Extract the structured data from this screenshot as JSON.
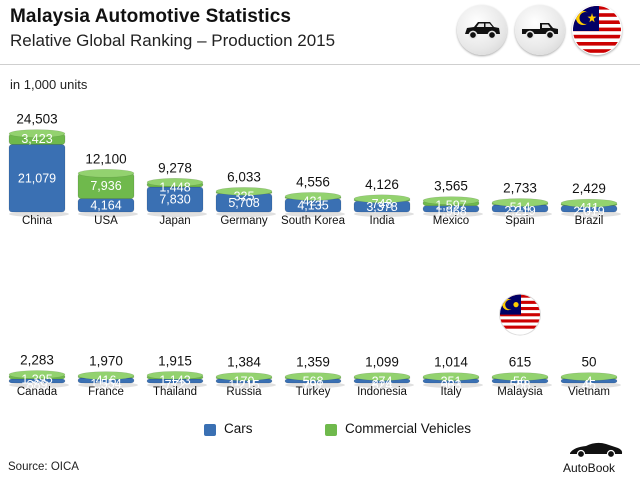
{
  "header": {
    "title": "Malaysia Automotive Statistics",
    "subtitle": "Relative Global Ranking – Production 2015",
    "unit_note": "in 1,000 units"
  },
  "icons": [
    "car-icon",
    "pickup-truck-icon",
    "malaysia-flag-icon"
  ],
  "legend": {
    "cars": "Cars",
    "commercial": "Commercial Vehicles"
  },
  "colors": {
    "cars": "#3a70b3",
    "cars_top": "#5b8ec9",
    "commercial": "#6fb94c",
    "commercial_top": "#93d26f"
  },
  "footer": {
    "source": "Source:  OICA",
    "brand": "AutoBook"
  },
  "chart_data": {
    "type": "bar",
    "title": "Relative Global Ranking – Production 2015",
    "subtitle": "in 1,000 units",
    "stacked": true,
    "legend": [
      "Cars",
      "Commercial Vehicles"
    ],
    "categories": [
      "China",
      "USA",
      "Japan",
      "Germany",
      "South Korea",
      "India",
      "Mexico",
      "Spain",
      "Brazil",
      "Canada",
      "France",
      "Thailand",
      "Russia",
      "Turkey",
      "Indonesia",
      "Italy",
      "Malaysia",
      "Vietnam"
    ],
    "totals": [
      "24,503",
      "12,100",
      "9,278",
      "6,033",
      "4,556",
      "4,126",
      "3,565",
      "2,733",
      "2,429",
      "2,283",
      "1,970",
      "1,915",
      "1,384",
      "1,359",
      "1,099",
      "1,014",
      "615",
      "50"
    ],
    "series": [
      {
        "name": "Cars",
        "values": [
          21079,
          4164,
          7830,
          5708,
          4135,
          3378,
          1968,
          2219,
          2019,
          889,
          1554,
          772,
          1215,
          791,
          824,
          663,
          558,
          45
        ],
        "labels": [
          "21,079",
          "4,164",
          "7,830",
          "5,708",
          "4,135",
          "3,378",
          "1,968",
          "2,219",
          "2,019",
          "889",
          "1,554",
          "772",
          "1,215",
          "791",
          "824",
          "663",
          "558",
          "45"
        ]
      },
      {
        "name": "Commercial Vehicles",
        "values": [
          3423,
          7936,
          1448,
          325,
          421,
          748,
          1597,
          514,
          411,
          1395,
          416,
          1143,
          170,
          568,
          274,
          351,
          56,
          4
        ],
        "labels": [
          "3,423",
          "7,936",
          "1,448",
          "325",
          "421",
          "748",
          "1,597",
          "514",
          "411",
          "1,395",
          "416",
          "1,143",
          "170",
          "568",
          "274",
          "351",
          "56",
          "4"
        ]
      }
    ],
    "highlight": "Malaysia",
    "source": "OICA"
  }
}
